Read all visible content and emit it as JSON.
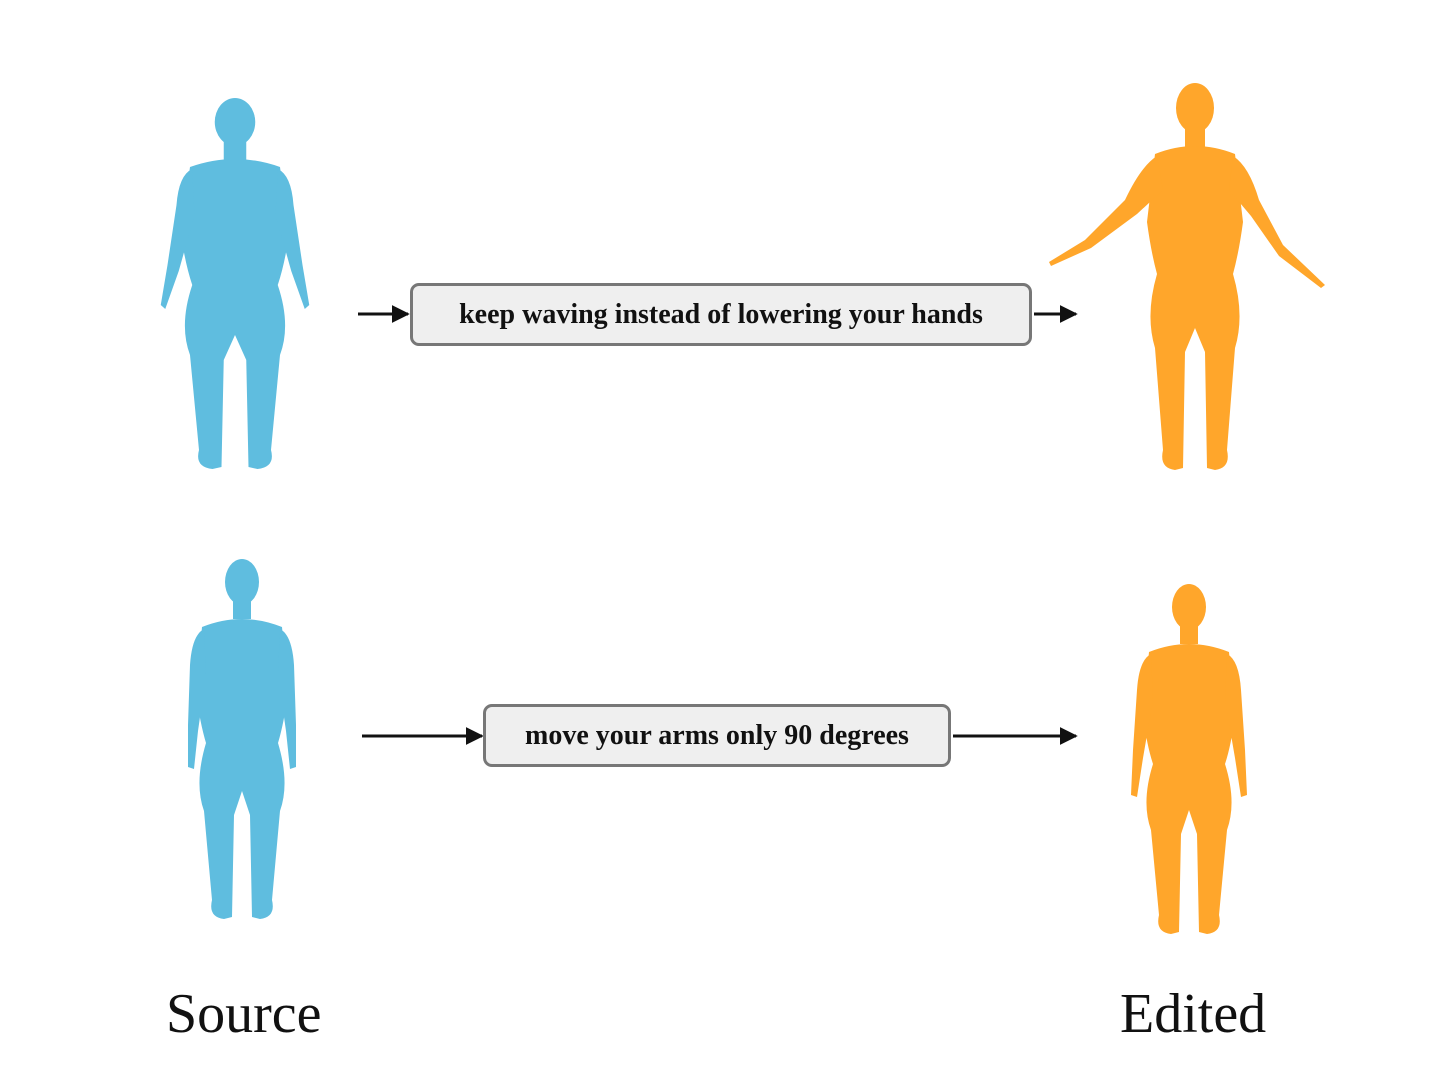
{
  "colors": {
    "source_body": "#5fbddf",
    "edited_body": "#ffa62b",
    "box_fill": "#efefef",
    "box_border": "#777777",
    "arrow": "#111111"
  },
  "rows": [
    {
      "prompt": "keep waving instead of lowering your hands",
      "source_pose": "arms-down",
      "edited_pose": "arms-raised-wave"
    },
    {
      "prompt": "move your arms only 90 degrees",
      "source_pose": "arms-down",
      "edited_pose": "arms-down"
    }
  ],
  "captions": {
    "source": "Source",
    "edited": "Edited"
  }
}
